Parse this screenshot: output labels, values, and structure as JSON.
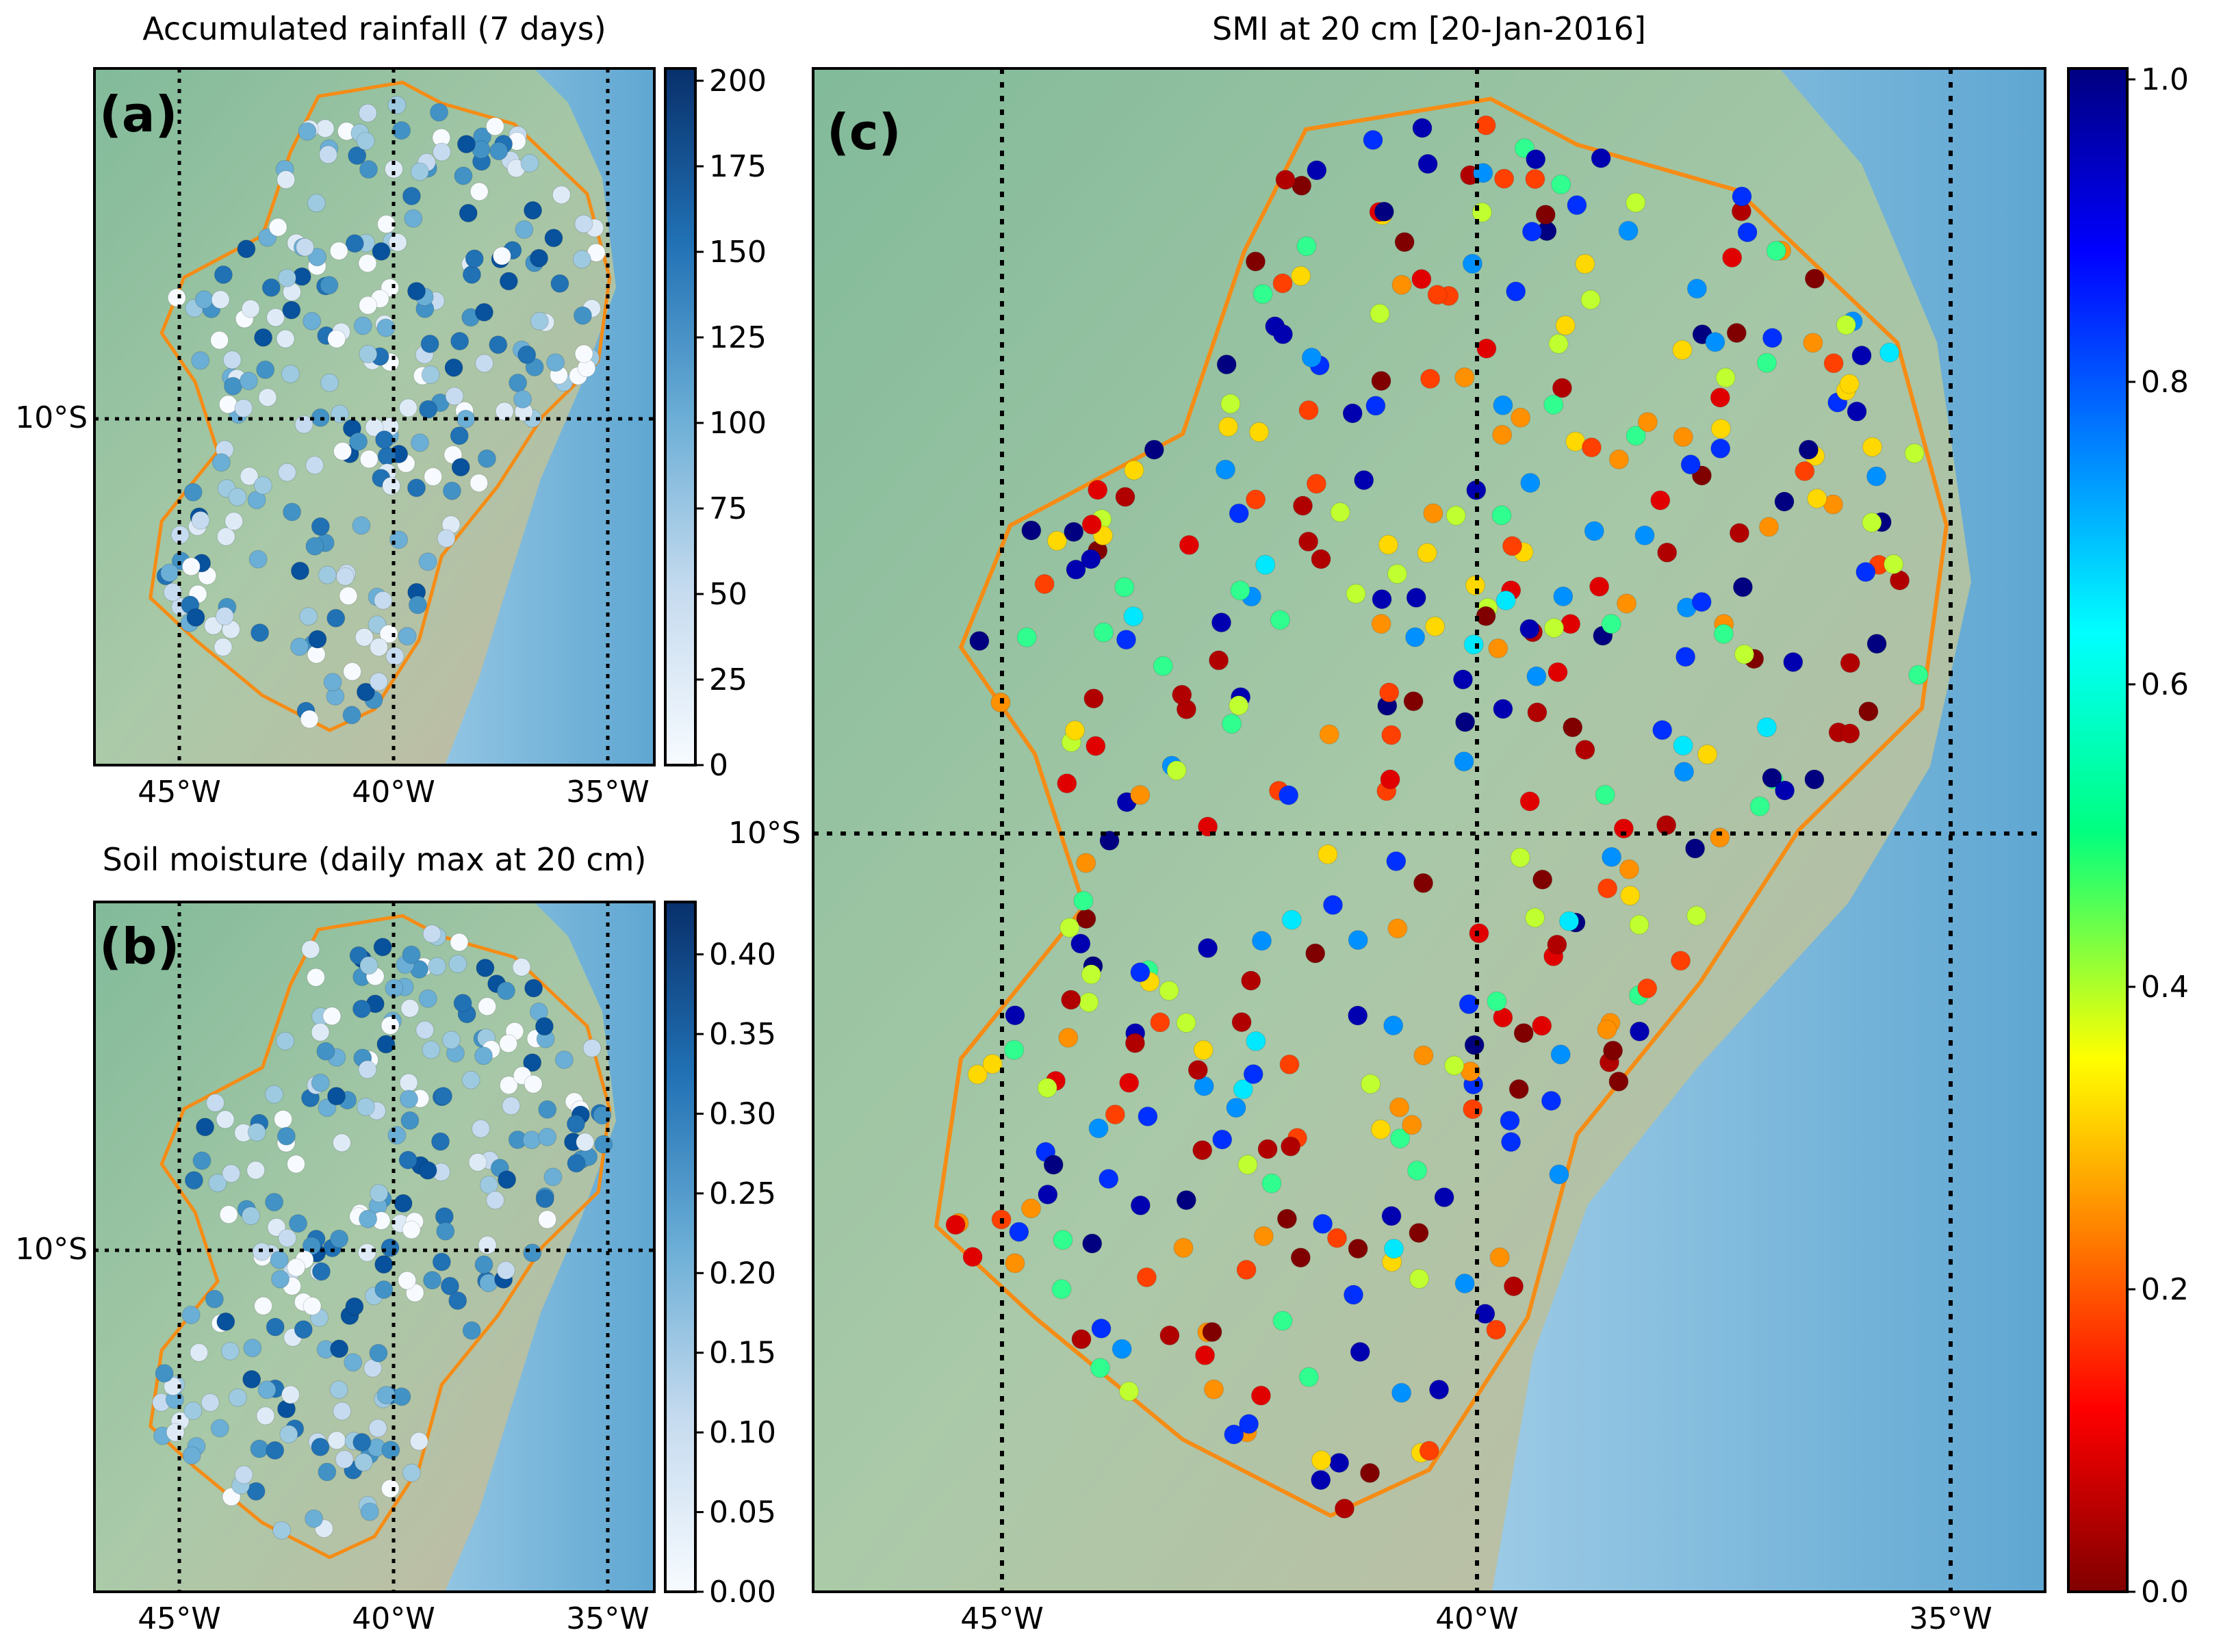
{
  "panels": {
    "a": {
      "label": "(a)",
      "title": "Accumulated rainfall (7 days)",
      "colorbar": {
        "colormap": "Blues",
        "range": [
          0,
          200
        ],
        "ticks": [
          "0",
          "25",
          "50",
          "75",
          "100",
          "125",
          "150",
          "175",
          "200"
        ]
      },
      "x_ticks": [
        "45°W",
        "40°W",
        "35°W"
      ],
      "y_ticks": [
        "10°S"
      ]
    },
    "b": {
      "label": "(b)",
      "title": "Soil moisture (daily max at 20 cm)",
      "colorbar": {
        "colormap": "Blues",
        "range": [
          0,
          0.42
        ],
        "ticks": [
          "0.00",
          "0.05",
          "0.10",
          "0.15",
          "0.20",
          "0.25",
          "0.30",
          "0.35",
          "0.40"
        ]
      },
      "x_ticks": [
        "45°W",
        "40°W",
        "35°W"
      ],
      "y_ticks": [
        "10°S"
      ]
    },
    "c": {
      "label": "(c)",
      "title": "SMI at 20 cm [20-Jan-2016]",
      "colorbar": {
        "colormap": "jet_r",
        "range": [
          0,
          1
        ],
        "ticks": [
          "0.0",
          "0.2",
          "0.4",
          "0.6",
          "0.8",
          "1.0"
        ]
      },
      "x_ticks": [
        "45°W",
        "40°W",
        "35°W"
      ],
      "y_ticks": [
        "10°S"
      ]
    }
  },
  "map": {
    "lon_range": [
      -47,
      -34
    ],
    "lat_range": [
      -19,
      -1
    ],
    "gridlines": {
      "lons": [
        -45,
        -40,
        -35
      ],
      "lats": [
        -10
      ],
      "style": "dotted"
    },
    "boundary_color": "#f58c16",
    "ocean_color": "#7fb9dc",
    "land_color": "#8dc3a0"
  }
}
